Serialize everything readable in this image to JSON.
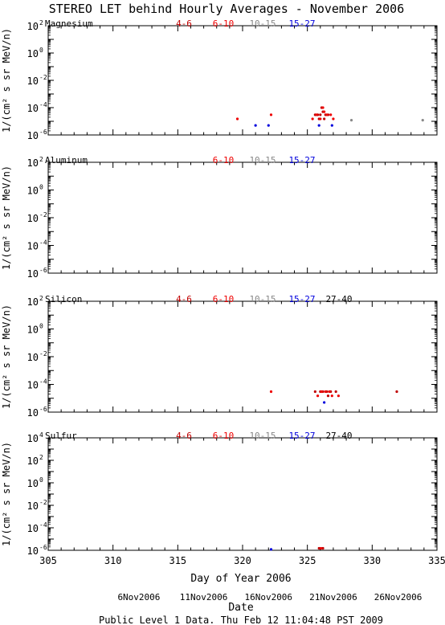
{
  "figure": {
    "title": "STEREO LET behind Hourly Averages - November 2006",
    "ylabel": "1/(cm² s sr MeV/n)",
    "xlabel": "Day of Year 2006",
    "date_label": "Date",
    "date_ticks": [
      {
        "x": 312,
        "label": "6Nov2006"
      },
      {
        "x": 317,
        "label": "11Nov2006"
      },
      {
        "x": 322,
        "label": "16Nov2006"
      },
      {
        "x": 327,
        "label": "21Nov2006"
      },
      {
        "x": 332,
        "label": "26Nov2006"
      }
    ],
    "footer": "Public Level 1 Data. Thu Feb 12 11:04:48 PST 2009"
  },
  "colors": {
    "4-6": "#c00000",
    "6-10": "#ee0000",
    "10-15": "#888888",
    "15-27": "#0000dd",
    "27-40": "#000000",
    "axis": "#000000"
  },
  "chart_data": [
    {
      "type": "scatter",
      "panel": "Magnesium",
      "xlim": [
        305,
        335
      ],
      "ylog": true,
      "ylim": [
        -6,
        2
      ],
      "yticks": [
        2,
        0,
        -2,
        -4,
        -6
      ],
      "legend": [
        "4-6",
        "6-10",
        "10-15",
        "15-27"
      ],
      "series": [
        {
          "name": "4-6",
          "points": [
            [
              325.6,
              3e-05
            ],
            [
              325.8,
              3e-05
            ],
            [
              326.0,
              3e-05
            ],
            [
              326.1,
              0.0001
            ],
            [
              326.2,
              5e-05
            ],
            [
              326.4,
              3e-05
            ],
            [
              326.6,
              3e-05
            ],
            [
              325.9,
              1.5e-05
            ],
            [
              326.3,
              1.5e-05
            ]
          ]
        },
        {
          "name": "6-10",
          "points": [
            [
              319.6,
              1.5e-05
            ],
            [
              322.2,
              3e-05
            ],
            [
              325.4,
              1.5e-05
            ],
            [
              325.7,
              3e-05
            ],
            [
              326.0,
              1.5e-05
            ],
            [
              326.2,
              0.0001
            ],
            [
              326.5,
              3e-05
            ],
            [
              326.8,
              3e-05
            ],
            [
              327.0,
              1.5e-05
            ],
            [
              326.3,
              5e-05
            ]
          ]
        },
        {
          "name": "10-15",
          "points": [
            [
              328.4,
              1.2e-05
            ],
            [
              333.9,
              1.2e-05
            ]
          ]
        },
        {
          "name": "15-27",
          "points": [
            [
              321.0,
              5e-06
            ],
            [
              322.0,
              5e-06
            ],
            [
              325.9,
              5e-06
            ],
            [
              326.9,
              5e-06
            ]
          ]
        }
      ]
    },
    {
      "type": "scatter",
      "panel": "Aluminum",
      "xlim": [
        305,
        335
      ],
      "ylog": true,
      "ylim": [
        -6,
        2
      ],
      "yticks": [
        2,
        0,
        -2,
        -4,
        -6
      ],
      "legend": [
        "6-10",
        "10-15",
        "15-27"
      ],
      "series": []
    },
    {
      "type": "scatter",
      "panel": "Silicon",
      "xlim": [
        305,
        335
      ],
      "ylog": true,
      "ylim": [
        -6,
        2
      ],
      "yticks": [
        2,
        0,
        -2,
        -4,
        -6
      ],
      "legend": [
        "4-6",
        "6-10",
        "10-15",
        "15-27",
        "27-40"
      ],
      "series": [
        {
          "name": "4-6",
          "points": [
            [
              325.6,
              3e-05
            ],
            [
              326.0,
              3e-05
            ],
            [
              326.2,
              3e-05
            ],
            [
              326.5,
              3e-05
            ],
            [
              326.8,
              3e-05
            ],
            [
              327.2,
              3e-05
            ],
            [
              331.9,
              3e-05
            ],
            [
              326.6,
              1.5e-05
            ]
          ]
        },
        {
          "name": "6-10",
          "points": [
            [
              322.2,
              3e-05
            ],
            [
              325.8,
              1.5e-05
            ],
            [
              326.1,
              3e-05
            ],
            [
              326.4,
              3e-05
            ],
            [
              326.9,
              1.5e-05
            ],
            [
              327.4,
              1.5e-05
            ],
            [
              326.7,
              3e-05
            ]
          ]
        },
        {
          "name": "15-27",
          "points": [
            [
              326.3,
              5e-06
            ]
          ]
        }
      ]
    },
    {
      "type": "scatter",
      "panel": "Sulfur",
      "xlim": [
        305,
        335
      ],
      "xticks": [
        305,
        310,
        315,
        320,
        325,
        330,
        335
      ],
      "ylog": true,
      "ylim": [
        -6,
        4
      ],
      "yticks": [
        4,
        2,
        0,
        -2,
        -4,
        -6
      ],
      "legend": [
        "4-6",
        "6-10",
        "10-15",
        "15-27",
        "27-40"
      ],
      "series": [
        {
          "name": "4-6",
          "points": [
            [
              325.9,
              1.5e-06
            ],
            [
              326.2,
              1.5e-06
            ]
          ]
        },
        {
          "name": "6-10",
          "points": [
            [
              326.05,
              1.5e-06
            ]
          ]
        },
        {
          "name": "15-27",
          "points": [
            [
              322.2,
              1.2e-06
            ]
          ]
        }
      ]
    }
  ]
}
